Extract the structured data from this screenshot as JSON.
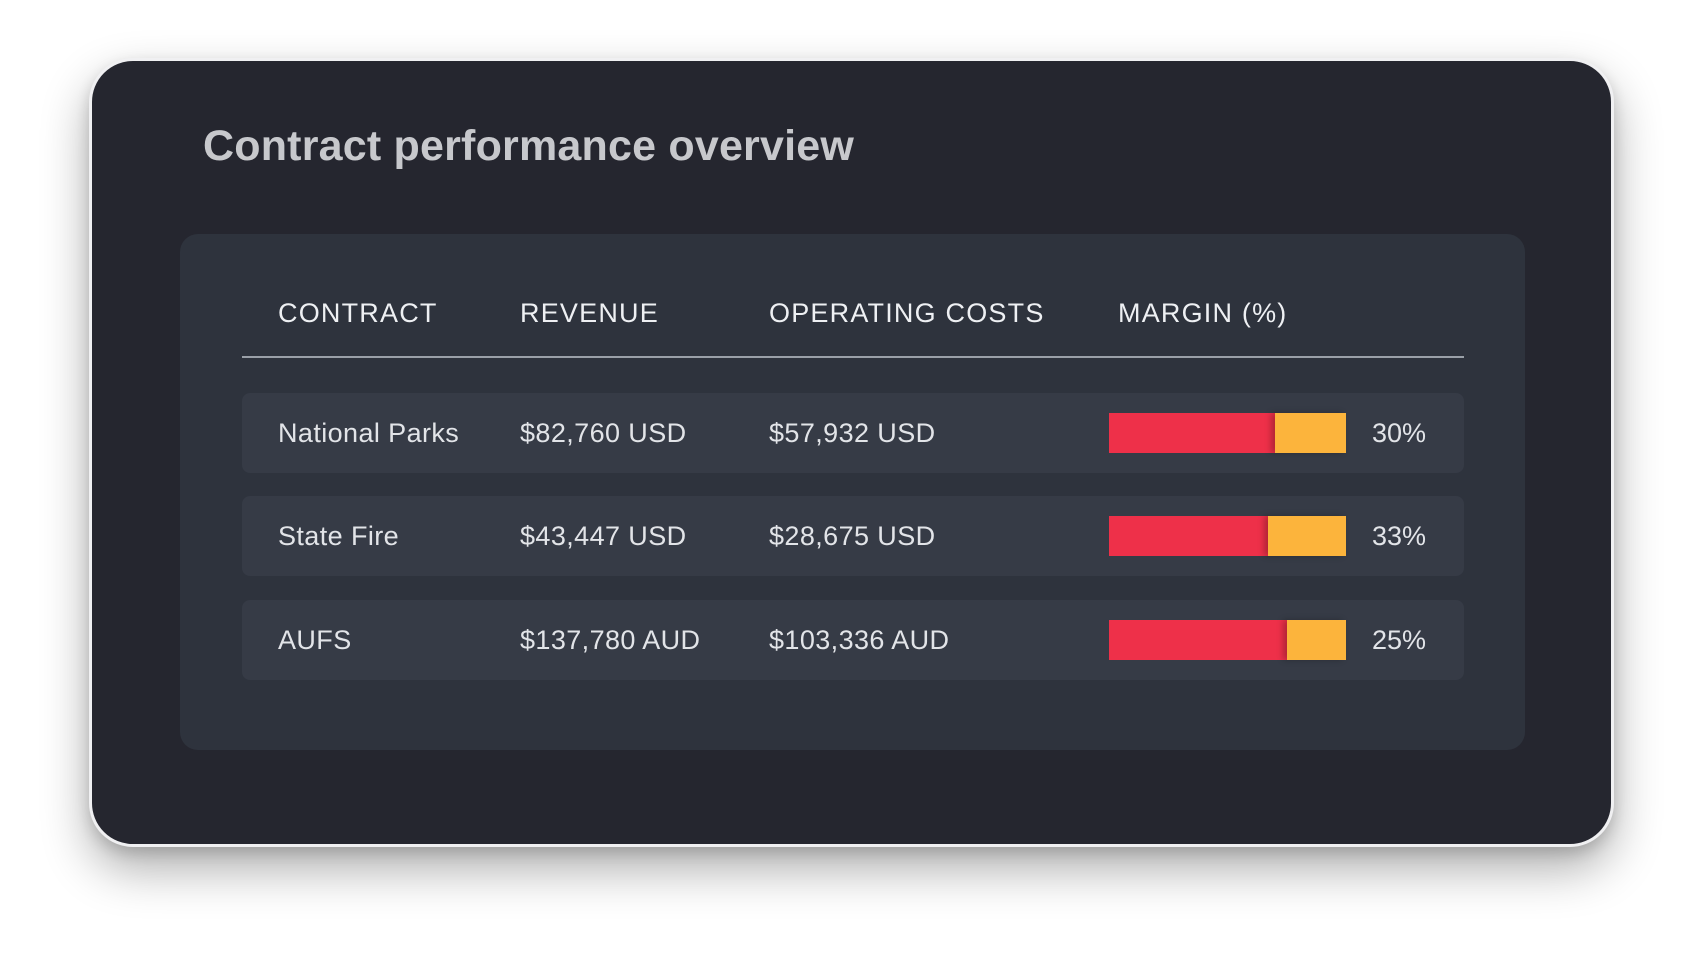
{
  "title": "Contract performance overview",
  "colors": {
    "cost": "#ee3049",
    "margin": "#fcb43c"
  },
  "table": {
    "headers": {
      "contract": "CONTRACT",
      "revenue": "REVENUE",
      "operating_costs": "OPERATING COSTS",
      "margin": "MARGIN (%)"
    },
    "rows": [
      {
        "contract": "National Parks",
        "revenue": "$82,760 USD",
        "operating_costs": "$57,932 USD",
        "margin_label": "30%",
        "margin_fraction": 0.3
      },
      {
        "contract": "State Fire",
        "revenue": "$43,447 USD",
        "operating_costs": "$28,675 USD",
        "margin_label": "33%",
        "margin_fraction": 0.33
      },
      {
        "contract": "AUFS",
        "revenue": "$137,780 AUD",
        "operating_costs": "$103,336 AUD",
        "margin_label": "25%",
        "margin_fraction": 0.25
      }
    ]
  }
}
